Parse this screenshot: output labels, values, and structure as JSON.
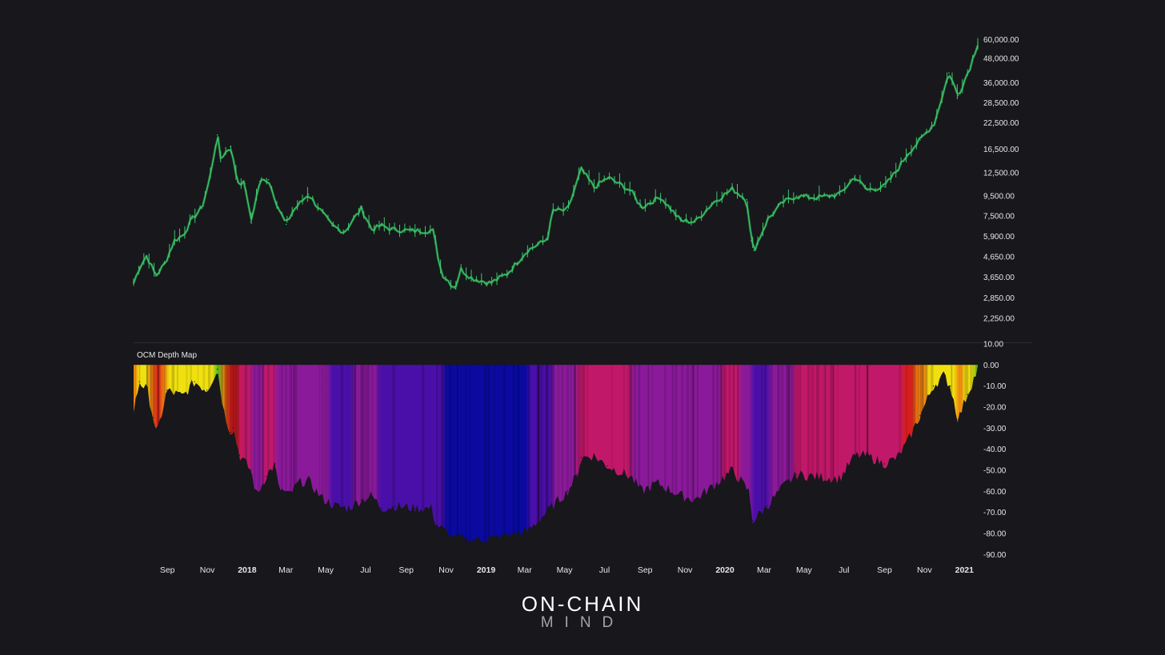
{
  "colors": {
    "background": "#17171c",
    "price_line": "#3ec46d",
    "price_shadow": "#1f6b34",
    "axis_text": "#e8e8e8",
    "divider": "#2b2b31",
    "depth_fill_scale": [
      "#0a0aa0",
      "#4a0fa8",
      "#8a1a9a",
      "#c2186a",
      "#d61e1e",
      "#f08010",
      "#f0e010",
      "#4fb81a"
    ]
  },
  "brand": {
    "line1": "ON-CHAIN",
    "line2": "MIND"
  },
  "chart_data": [
    {
      "type": "line",
      "title": "",
      "y_scale": "log",
      "y_ticks": [
        "60,000.00",
        "48,000.00",
        "36,000.00",
        "28,500.00",
        "22,500.00",
        "16,500.00",
        "12,500.00",
        "9,500.00",
        "7,500.00",
        "5,900.00",
        "4,650.00",
        "3,650.00",
        "2,850.00",
        "2,250.00"
      ],
      "y_tick_values": [
        60000,
        48000,
        36000,
        28500,
        22500,
        16500,
        12500,
        9500,
        7500,
        5900,
        4650,
        3650,
        2850,
        2250
      ],
      "ylim": [
        1950,
        62000
      ],
      "x_tick_labels": [
        "Sep",
        "Nov",
        "2018",
        "Mar",
        "May",
        "Jul",
        "Sep",
        "Nov",
        "2019",
        "Mar",
        "May",
        "Jul",
        "Sep",
        "Nov",
        "2020",
        "Mar",
        "May",
        "Jul",
        "Sep",
        "Nov",
        "2021"
      ],
      "x_tick_dates": [
        "2017-09-01",
        "2017-11-01",
        "2018-01-01",
        "2018-03-01",
        "2018-05-01",
        "2018-07-01",
        "2018-09-01",
        "2018-11-01",
        "2019-01-01",
        "2019-03-01",
        "2019-05-01",
        "2019-07-01",
        "2019-09-01",
        "2019-11-01",
        "2020-01-01",
        "2020-03-01",
        "2020-05-01",
        "2020-07-01",
        "2020-09-01",
        "2020-11-01",
        "2021-01-01"
      ],
      "year_ticks": [
        "2018",
        "2019",
        "2020",
        "2021"
      ],
      "xlim": [
        "2017-08-11",
        "2021-02-21"
      ],
      "series": [
        {
          "x": [
            "2017-08-11",
            "2017-08-20",
            "2017-08-31",
            "2017-09-14",
            "2017-09-28",
            "2017-10-12",
            "2017-10-26",
            "2017-11-09",
            "2017-11-23",
            "2017-12-05",
            "2017-12-17",
            "2017-12-22",
            "2018-01-06",
            "2018-01-17",
            "2018-01-28",
            "2018-02-06",
            "2018-02-20",
            "2018-03-05",
            "2018-03-20",
            "2018-04-01",
            "2018-04-12",
            "2018-05-05",
            "2018-05-20",
            "2018-06-10",
            "2018-06-29",
            "2018-07-25",
            "2018-08-10",
            "2018-08-25",
            "2018-09-10",
            "2018-10-10",
            "2018-11-12",
            "2018-11-20",
            "2018-11-25",
            "2018-12-15",
            "2018-12-24",
            "2019-01-10",
            "2019-02-07",
            "2019-03-05",
            "2019-04-05",
            "2019-05-05",
            "2019-05-14",
            "2019-06-05",
            "2019-06-26",
            "2019-07-16",
            "2019-08-06",
            "2019-09-10",
            "2019-09-26",
            "2019-10-25",
            "2019-11-25",
            "2019-12-17",
            "2020-01-14",
            "2020-02-12",
            "2020-03-05",
            "2020-03-12",
            "2020-03-16",
            "2020-04-06",
            "2020-04-29",
            "2020-05-20",
            "2020-06-20",
            "2020-07-25",
            "2020-08-17",
            "2020-09-05",
            "2020-10-01",
            "2020-10-21",
            "2020-11-05",
            "2020-11-25",
            "2020-12-17",
            "2021-01-08",
            "2021-01-22",
            "2021-02-10",
            "2021-02-21"
          ],
          "values": [
            3400,
            4100,
            4700,
            3700,
            4300,
            5600,
            6000,
            7300,
            8200,
            11500,
            19500,
            14800,
            17000,
            11200,
            11000,
            7000,
            11300,
            11500,
            8300,
            6800,
            8000,
            9700,
            8300,
            6700,
            6200,
            8200,
            6400,
            6700,
            6400,
            6300,
            6300,
            4500,
            3800,
            3200,
            4000,
            3600,
            3400,
            3800,
            5000,
            5700,
            8000,
            8000,
            13000,
            10500,
            11800,
            10100,
            8300,
            9400,
            7100,
            7000,
            8800,
            10300,
            9100,
            5600,
            5000,
            7200,
            8800,
            9500,
            9300,
            9700,
            11900,
            10200,
            10600,
            12900,
            15500,
            18400,
            22500,
            40500,
            31000,
            44000,
            57500
          ]
        }
      ]
    },
    {
      "type": "area",
      "title": "OCM Depth Map",
      "y_ticks": [
        "10.00",
        "0.00",
        "-10.00",
        "-20.00",
        "-30.00",
        "-40.00",
        "-50.00",
        "-60.00",
        "-70.00",
        "-80.00",
        "-90.00"
      ],
      "y_tick_values": [
        10,
        0,
        -10,
        -20,
        -30,
        -40,
        -50,
        -60,
        -70,
        -80,
        -90
      ],
      "ylim": [
        -91,
        10
      ],
      "series": [
        {
          "x": [
            "2017-08-11",
            "2017-08-20",
            "2017-09-01",
            "2017-09-10",
            "2017-09-15",
            "2017-10-01",
            "2017-10-25",
            "2017-11-12",
            "2017-12-01",
            "2017-12-17",
            "2017-12-27",
            "2018-01-06",
            "2018-01-10",
            "2018-01-20",
            "2018-02-06",
            "2018-02-15",
            "2018-03-01",
            "2018-03-15",
            "2018-03-20",
            "2018-04-05",
            "2018-04-20",
            "2018-05-05",
            "2018-05-25",
            "2018-06-15",
            "2018-07-05",
            "2018-07-25",
            "2018-08-10",
            "2018-08-25",
            "2018-09-15",
            "2018-10-15",
            "2018-11-10",
            "2018-11-15",
            "2018-11-25",
            "2018-12-15",
            "2019-01-15",
            "2019-02-15",
            "2019-03-15",
            "2019-04-05",
            "2019-05-10",
            "2019-06-05",
            "2019-06-20",
            "2019-06-26",
            "2019-07-15",
            "2019-08-05",
            "2019-09-10",
            "2019-09-26",
            "2019-10-20",
            "2019-11-25",
            "2019-12-17",
            "2020-01-15",
            "2020-02-12",
            "2020-03-08",
            "2020-03-14",
            "2020-04-05",
            "2020-04-29",
            "2020-05-20",
            "2020-06-20",
            "2020-07-25",
            "2020-08-17",
            "2020-09-05",
            "2020-10-01",
            "2020-10-21",
            "2020-11-05",
            "2020-11-25",
            "2020-12-15",
            "2020-12-31",
            "2021-01-10",
            "2021-01-22",
            "2021-02-05",
            "2021-02-21"
          ],
          "values": [
            -22,
            -8,
            -12,
            -25,
            -34,
            -12,
            -15,
            -8,
            -12,
            -2,
            -22,
            -32,
            -30,
            -43,
            -50,
            -62,
            -53,
            -47,
            -58,
            -62,
            -56,
            -55,
            -63,
            -67,
            -68,
            -64,
            -62,
            -68,
            -67,
            -68,
            -68,
            -75,
            -78,
            -82,
            -83,
            -82,
            -80,
            -79,
            -68,
            -60,
            -52,
            -44,
            -43,
            -48,
            -53,
            -60,
            -56,
            -62,
            -64,
            -57,
            -50,
            -60,
            -74,
            -67,
            -58,
            -52,
            -53,
            -54,
            -43,
            -43,
            -47,
            -44,
            -37,
            -24,
            -10,
            -5,
            -10,
            -26,
            -14,
            -2
          ]
        }
      ]
    }
  ]
}
